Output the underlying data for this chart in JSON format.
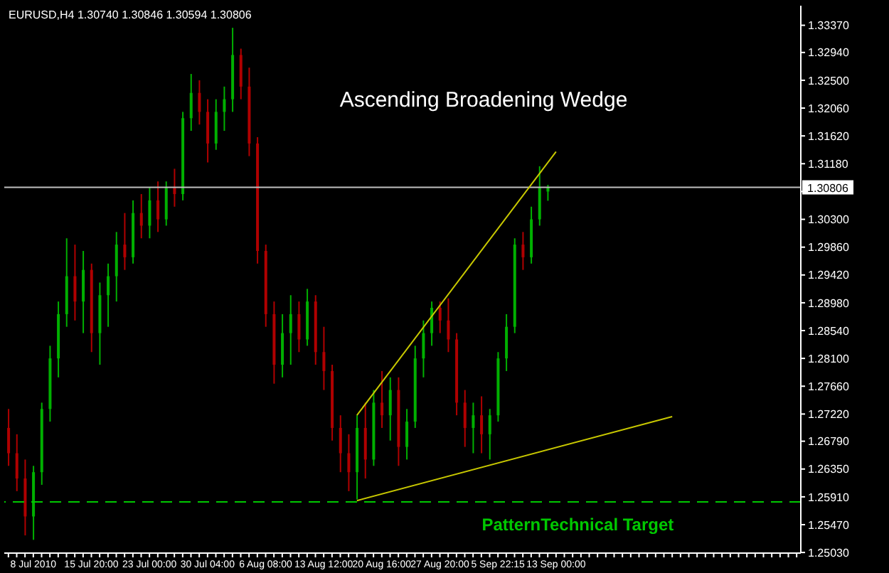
{
  "chart_data": {
    "type": "candlestick",
    "title": "Ascending Broadening Wedge",
    "annotations": [
      "EURUSD,H4 1.30740 1.30846 1.30594 1.30806"
    ],
    "categories": [
      null,
      null,
      null,
      "8 Jul 2010",
      null,
      null,
      null,
      null,
      null,
      null,
      "15 Jul 20:00",
      null,
      null,
      null,
      null,
      null,
      null,
      "23 Jul 00:00",
      null,
      null,
      null,
      null,
      null,
      null,
      "30 Jul 04:00",
      null,
      null,
      null,
      null,
      null,
      null,
      "6 Aug 08:00",
      null,
      null,
      null,
      null,
      null,
      null,
      "13 Aug 12:00",
      null,
      null,
      null,
      null,
      null,
      null,
      "20 Aug 16:00",
      null,
      null,
      null,
      null,
      null,
      null,
      "27 Aug 20:00",
      null,
      null,
      null,
      null,
      null,
      null,
      "5 Sep 22:15",
      null,
      null,
      null,
      null,
      null,
      null,
      "13 Sep 00:00",
      null,
      null,
      null,
      null,
      null,
      null,
      null,
      null,
      null,
      null,
      null,
      null,
      null,
      null,
      null,
      null,
      null,
      null,
      null,
      null,
      null,
      null,
      null,
      null,
      null,
      null,
      null,
      null,
      null
    ],
    "ohlc": [
      [
        1.27,
        1.273,
        1.264,
        1.266
      ],
      [
        1.266,
        1.269,
        1.26,
        1.262
      ],
      [
        1.262,
        1.265,
        1.253,
        1.256
      ],
      [
        1.256,
        1.264,
        1.2523,
        1.263
      ],
      [
        1.263,
        1.274,
        1.261,
        1.273
      ],
      [
        1.273,
        1.283,
        1.271,
        1.281
      ],
      [
        1.281,
        1.29,
        1.278,
        1.288
      ],
      [
        1.288,
        1.3,
        1.286,
        1.294
      ],
      [
        1.294,
        1.299,
        1.287,
        1.29
      ],
      [
        1.29,
        1.298,
        1.285,
        1.295
      ],
      [
        1.295,
        1.296,
        1.282,
        1.285
      ],
      [
        1.285,
        1.293,
        1.28,
        1.291
      ],
      [
        1.291,
        1.296,
        1.286,
        1.294
      ],
      [
        1.294,
        1.301,
        1.29,
        1.299
      ],
      [
        1.299,
        1.304,
        1.295,
        1.297
      ],
      [
        1.297,
        1.306,
        1.296,
        1.304
      ],
      [
        1.304,
        1.307,
        1.3,
        1.302
      ],
      [
        1.302,
        1.308,
        1.3,
        1.306
      ],
      [
        1.306,
        1.309,
        1.301,
        1.303
      ],
      [
        1.303,
        1.309,
        1.302,
        1.308
      ],
      [
        1.308,
        1.311,
        1.305,
        1.307
      ],
      [
        1.307,
        1.32,
        1.306,
        1.319
      ],
      [
        1.319,
        1.326,
        1.317,
        1.323
      ],
      [
        1.323,
        1.325,
        1.318,
        1.32
      ],
      [
        1.32,
        1.322,
        1.312,
        1.315
      ],
      [
        1.315,
        1.322,
        1.314,
        1.32
      ],
      [
        1.32,
        1.324,
        1.317,
        1.322
      ],
      [
        1.322,
        1.3333,
        1.32,
        1.329
      ],
      [
        1.329,
        1.33,
        1.322,
        1.324
      ],
      [
        1.324,
        1.327,
        1.313,
        1.315
      ],
      [
        1.315,
        1.316,
        1.296,
        1.298
      ],
      [
        1.298,
        1.299,
        1.286,
        1.288
      ],
      [
        1.288,
        1.29,
        1.277,
        1.28
      ],
      [
        1.28,
        1.288,
        1.278,
        1.285
      ],
      [
        1.285,
        1.291,
        1.28,
        1.288
      ],
      [
        1.288,
        1.29,
        1.282,
        1.284
      ],
      [
        1.284,
        1.292,
        1.283,
        1.29
      ],
      [
        1.29,
        1.291,
        1.28,
        1.282
      ],
      [
        1.282,
        1.286,
        1.276,
        1.279
      ],
      [
        1.279,
        1.28,
        1.268,
        1.27
      ],
      [
        1.27,
        1.272,
        1.263,
        1.266
      ],
      [
        1.266,
        1.269,
        1.26,
        1.263
      ],
      [
        1.263,
        1.272,
        1.2587,
        1.27
      ],
      [
        1.27,
        1.274,
        1.262,
        1.265
      ],
      [
        1.265,
        1.276,
        1.264,
        1.274
      ],
      [
        1.274,
        1.279,
        1.27,
        1.272
      ],
      [
        1.272,
        1.278,
        1.268,
        1.276
      ],
      [
        1.276,
        1.278,
        1.264,
        1.267
      ],
      [
        1.267,
        1.273,
        1.265,
        1.271
      ],
      [
        1.271,
        1.283,
        1.27,
        1.281
      ],
      [
        1.281,
        1.287,
        1.278,
        1.285
      ],
      [
        1.285,
        1.29,
        1.283,
        1.289
      ],
      [
        1.289,
        1.29,
        1.285,
        1.287
      ],
      [
        1.287,
        1.2905,
        1.282,
        1.284
      ],
      [
        1.284,
        1.285,
        1.272,
        1.274
      ],
      [
        1.274,
        1.276,
        1.267,
        1.27
      ],
      [
        1.27,
        1.274,
        1.266,
        1.272
      ],
      [
        1.272,
        1.275,
        1.266,
        1.269
      ],
      [
        1.269,
        1.273,
        1.265,
        1.272
      ],
      [
        1.272,
        1.282,
        1.271,
        1.281
      ],
      [
        1.281,
        1.288,
        1.279,
        1.286
      ],
      [
        1.286,
        1.3,
        1.285,
        1.299
      ],
      [
        1.299,
        1.301,
        1.295,
        1.297
      ],
      [
        1.297,
        1.305,
        1.296,
        1.303
      ],
      [
        1.303,
        1.3114,
        1.302,
        1.308
      ],
      [
        1.3074,
        1.30846,
        1.30594,
        1.30806
      ],
      null,
      null,
      null,
      null,
      null,
      null,
      null,
      null,
      null,
      null,
      null,
      null,
      null,
      null,
      null,
      null,
      null,
      null,
      null,
      null,
      null,
      null,
      null,
      null,
      null,
      null,
      null,
      null,
      null,
      null
    ],
    "colors": [
      "#b00000",
      "#b00000",
      "#b00000",
      "#00b000",
      "#00b000",
      "#00b000",
      "#00b000",
      "#00b000",
      "#b00000",
      "#00b000",
      "#b00000",
      "#00b000",
      "#00b000",
      "#00b000",
      "#b00000",
      "#00b000",
      "#b00000",
      "#00b000",
      "#b00000",
      "#00b000",
      "#b00000",
      "#00b000",
      "#00b000",
      "#b00000",
      "#b00000",
      "#00b000",
      "#00b000",
      "#00b000",
      "#b00000",
      "#b00000",
      "#b00000",
      "#b00000",
      "#b00000",
      "#00b000",
      "#00b000",
      "#b00000",
      "#00b000",
      "#b00000",
      "#b00000",
      "#b00000",
      "#b00000",
      "#b00000",
      "#00b000",
      "#b00000",
      "#00b000",
      "#b00000",
      "#00b000",
      "#b00000",
      "#00b000",
      "#00b000",
      "#00b000",
      "#00b000",
      "#b00000",
      "#b00000",
      "#b00000",
      "#b00000",
      "#00b000",
      "#b00000",
      "#00b000",
      "#00b000",
      "#00b000",
      "#00b000",
      "#b00000",
      "#00b000",
      "#00b000",
      "#00b000",
      null,
      null,
      null,
      null,
      null,
      null,
      null,
      null,
      null,
      null,
      null,
      null,
      null,
      null,
      null,
      null,
      null,
      null,
      null,
      null,
      null,
      null,
      null,
      null,
      null,
      null,
      null,
      null,
      null,
      null
    ],
    "series": [
      {
        "type": "line",
        "color": "#c8c800",
        "values": [
          null,
          null,
          null,
          null,
          null,
          null,
          null,
          null,
          null,
          null,
          null,
          null,
          null,
          null,
          null,
          null,
          null,
          null,
          null,
          null,
          null,
          null,
          null,
          null,
          null,
          null,
          null,
          null,
          null,
          null,
          null,
          null,
          null,
          null,
          null,
          null,
          null,
          null,
          null,
          null,
          null,
          null,
          1.272,
          null,
          null,
          null,
          null,
          null,
          null,
          null,
          null,
          null,
          null,
          null,
          null,
          null,
          null,
          null,
          null,
          null,
          null,
          null,
          null,
          null,
          null,
          null,
          1.3137,
          null,
          null,
          null,
          null,
          null,
          null,
          null,
          null,
          null,
          null,
          null,
          null,
          null,
          null,
          null,
          null,
          null,
          null,
          null,
          null,
          null,
          null,
          null,
          null,
          null,
          null,
          null,
          null,
          null
        ]
      },
      {
        "type": "line",
        "color": "#c8c800",
        "values": [
          null,
          null,
          null,
          null,
          null,
          null,
          null,
          null,
          null,
          null,
          null,
          null,
          null,
          null,
          null,
          null,
          null,
          null,
          null,
          null,
          null,
          null,
          null,
          null,
          null,
          null,
          null,
          null,
          null,
          null,
          null,
          null,
          null,
          null,
          null,
          null,
          null,
          null,
          null,
          null,
          null,
          null,
          1.2585,
          null,
          null,
          null,
          null,
          null,
          null,
          null,
          null,
          null,
          null,
          null,
          null,
          null,
          null,
          null,
          null,
          null,
          null,
          null,
          null,
          null,
          null,
          null,
          null,
          null,
          null,
          null,
          null,
          null,
          null,
          null,
          null,
          null,
          null,
          null,
          null,
          null,
          1.2718,
          null,
          null,
          null,
          null,
          null,
          null,
          null,
          null,
          null,
          null,
          null,
          null,
          null,
          null,
          null
        ]
      }
    ],
    "ylim": [
      1.2502,
      1.3368
    ],
    "yticks": [
      {
        "value": 1.2503,
        "label": "1.25030"
      },
      {
        "value": 1.2547,
        "label": "1.25470"
      },
      {
        "value": 1.2591,
        "label": "1.25910"
      },
      {
        "value": 1.2635,
        "label": "1.26350"
      },
      {
        "value": 1.2679,
        "label": "1.26790"
      },
      {
        "value": 1.2722,
        "label": "1.27220"
      },
      {
        "value": 1.2766,
        "label": "1.27660"
      },
      {
        "value": 1.281,
        "label": "1.28100"
      },
      {
        "value": 1.2854,
        "label": "1.28540"
      },
      {
        "value": 1.2898,
        "label": "1.28980"
      },
      {
        "value": 1.2942,
        "label": "1.29420"
      },
      {
        "value": 1.2986,
        "label": "1.29860"
      },
      {
        "value": 1.303,
        "label": "1.30300"
      },
      {
        "value": 1.3074,
        "label": null
      },
      {
        "value": 1.3118,
        "label": "1.31180"
      },
      {
        "value": 1.3162,
        "label": "1.31620"
      },
      {
        "value": 1.3206,
        "label": "1.32060"
      },
      {
        "value": 1.325,
        "label": "1.32500"
      },
      {
        "value": 1.3294,
        "label": "1.32940"
      },
      {
        "value": 1.3337,
        "label": "1.33370"
      }
    ],
    "ref_lines": [
      {
        "axis": "y",
        "value": 1.30806,
        "label": "1.30806",
        "color": "#c0c0c0",
        "line_style": "solid"
      },
      {
        "axis": "y",
        "value": 1.2583,
        "label": "PatternTechnical Target",
        "color": "#00c800",
        "line_style": "dashed"
      }
    ],
    "marker": "none"
  }
}
